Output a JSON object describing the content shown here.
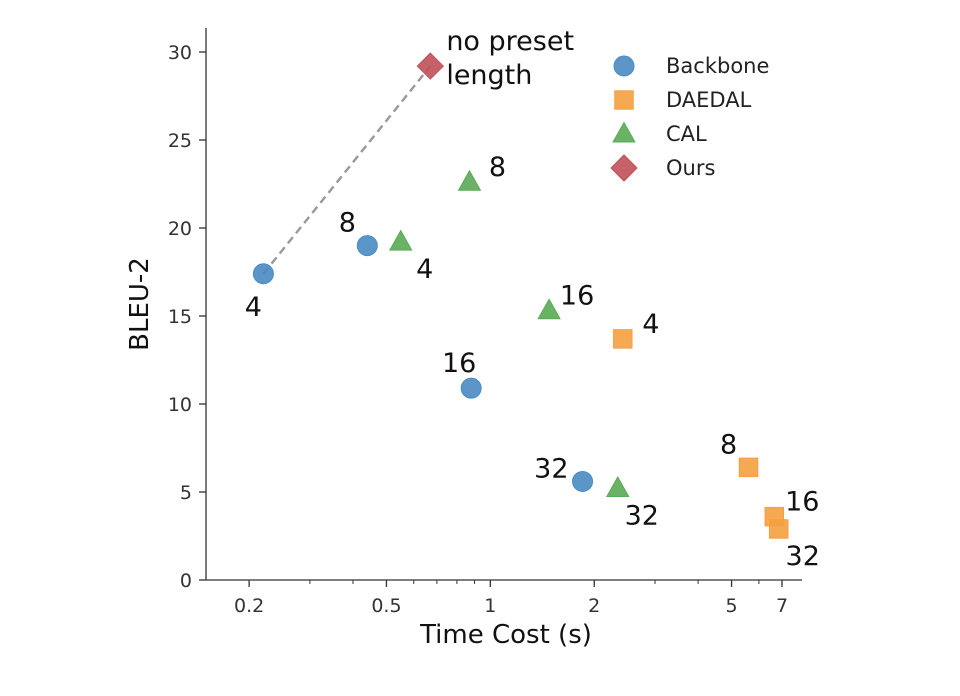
{
  "chart_data": {
    "type": "scatter",
    "title": "",
    "xlabel": "Time Cost (s)",
    "ylabel": "BLEU-2",
    "xscale": "log",
    "xlim": [
      0.18,
      8
    ],
    "ylim": [
      0,
      31
    ],
    "xticks": [
      {
        "value": 0.2,
        "label": "0.2"
      },
      {
        "value": 0.5,
        "label": "0.5"
      },
      {
        "value": 1,
        "label": "1"
      },
      {
        "value": 2,
        "label": "2"
      },
      {
        "value": 5,
        "label": "5"
      },
      {
        "value": 7,
        "label": "7"
      }
    ],
    "xminor": [
      0.3,
      0.4,
      0.6,
      0.7,
      0.8,
      0.9,
      3,
      4,
      6
    ],
    "yticks": [
      {
        "value": 0,
        "label": "0"
      },
      {
        "value": 5,
        "label": "5"
      },
      {
        "value": 10,
        "label": "10"
      },
      {
        "value": 15,
        "label": "15"
      },
      {
        "value": 20,
        "label": "20"
      },
      {
        "value": 25,
        "label": "25"
      },
      {
        "value": 30,
        "label": "30"
      }
    ],
    "grid": false,
    "legend_position": "top-right",
    "series": [
      {
        "name": "Backbone",
        "marker": "circle",
        "color": "#4a8bc2",
        "points": [
          {
            "x": 0.22,
            "y": 17.4,
            "label": "4",
            "anchor": "bottom-left"
          },
          {
            "x": 0.44,
            "y": 19.0,
            "label": "8",
            "anchor": "top-left"
          },
          {
            "x": 0.88,
            "y": 10.9,
            "label": "16",
            "anchor": "top"
          },
          {
            "x": 1.85,
            "y": 5.6,
            "label": "32",
            "anchor": "left"
          }
        ]
      },
      {
        "name": "DAEDAL",
        "marker": "square",
        "color": "#f5a040",
        "points": [
          {
            "x": 2.42,
            "y": 13.7,
            "label": "4",
            "anchor": "top-right"
          },
          {
            "x": 5.6,
            "y": 6.4,
            "label": "8",
            "anchor": "top-left"
          },
          {
            "x": 6.65,
            "y": 3.6,
            "label": "16",
            "anchor": "top-right"
          },
          {
            "x": 6.85,
            "y": 2.9,
            "label": "32",
            "anchor": "bottom-right"
          }
        ]
      },
      {
        "name": "CAL",
        "marker": "triangle",
        "color": "#5aab55",
        "points": [
          {
            "x": 0.55,
            "y": 19.2,
            "label": "4",
            "anchor": "bottom-right"
          },
          {
            "x": 0.87,
            "y": 22.6,
            "label": "8",
            "anchor": "top-right"
          },
          {
            "x": 1.48,
            "y": 15.3,
            "label": "16",
            "anchor": "top-right"
          },
          {
            "x": 2.34,
            "y": 5.2,
            "label": "32",
            "anchor": "bottom-right"
          }
        ]
      },
      {
        "name": "Ours",
        "marker": "diamond",
        "color": "#c0505a",
        "points": [
          {
            "x": 0.67,
            "y": 29.2,
            "label": "no preset length",
            "anchor": "right"
          }
        ]
      }
    ],
    "lines": [
      {
        "from": {
          "x": 0.22,
          "y": 17.4
        },
        "to": {
          "x": 0.67,
          "y": 29.2
        },
        "style": "dashed",
        "color": "#999999"
      }
    ]
  }
}
